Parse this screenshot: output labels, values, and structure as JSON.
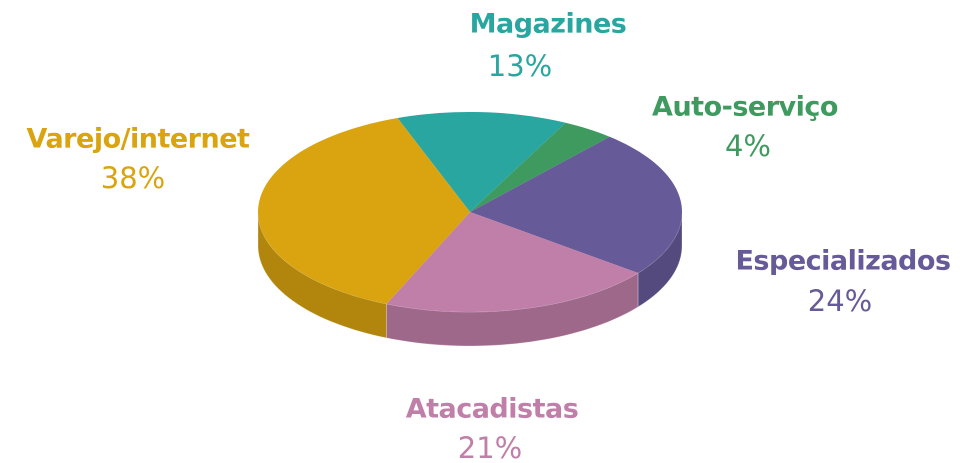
{
  "chart_data": {
    "type": "pie",
    "categories": [
      "Magazines",
      "Auto-serviço",
      "Especializados",
      "Atacadistas",
      "Varejo/internet"
    ],
    "values": [
      13,
      4,
      24,
      21,
      38
    ],
    "value_labels": [
      "13%",
      "4%",
      "24%",
      "21%",
      "38%"
    ],
    "colors": [
      "#2aa6a0",
      "#3f9a60",
      "#675a98",
      "#c07fa8",
      "#d9a40f"
    ]
  }
}
